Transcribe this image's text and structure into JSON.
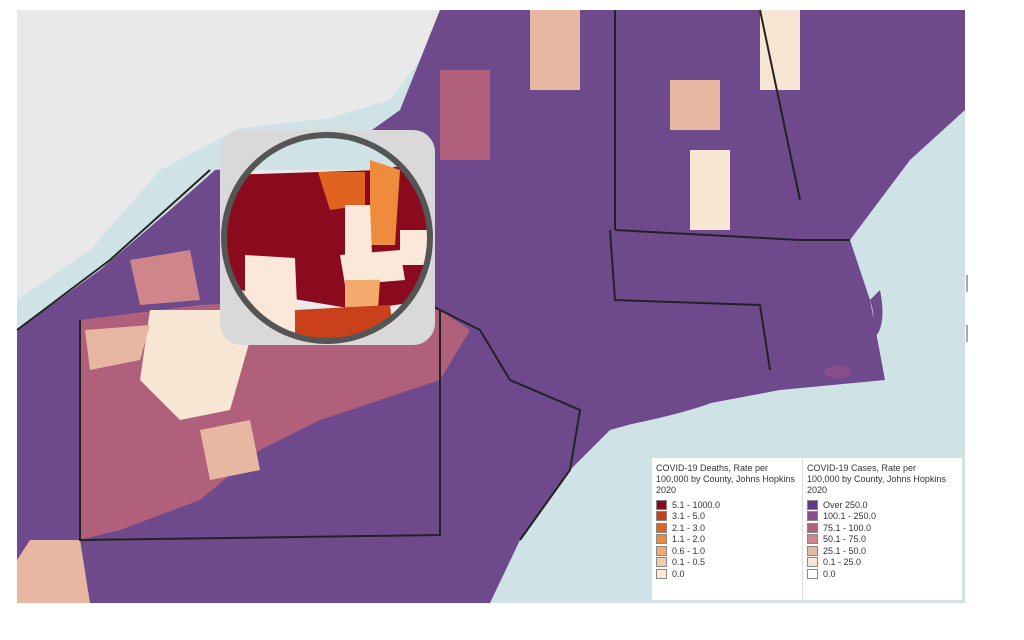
{
  "legend_deaths": {
    "title": "COVID-19 Deaths, Rate per 100,000 by County, Johns Hopkins 2020",
    "items": [
      {
        "label": "5.1 - 1000.0",
        "color": "#8b0a1e"
      },
      {
        "label": "3.1 - 5.0",
        "color": "#c9401b"
      },
      {
        "label": "2.1 - 3.0",
        "color": "#e2621f"
      },
      {
        "label": "1.1 - 2.0",
        "color": "#ef8b3d"
      },
      {
        "label": "0.6 - 1.0",
        "color": "#f4aa6c"
      },
      {
        "label": "0.1 - 0.5",
        "color": "#f8cca2"
      },
      {
        "label": "0.0",
        "color": "#fbe8d8"
      }
    ]
  },
  "legend_cases": {
    "title": "COVID-19 Cases, Rate per 100,000 by County, Johns Hopkins 2020",
    "items": [
      {
        "label": "Over 250.0",
        "color": "#5f3b88"
      },
      {
        "label": "100.1 - 250.0",
        "color": "#8a4d8b"
      },
      {
        "label": "75.1 - 100.0",
        "color": "#b0607b"
      },
      {
        "label": "50.1 - 75.0",
        "color": "#cf868b"
      },
      {
        "label": "25.1 - 50.0",
        "color": "#e7b7a1"
      },
      {
        "label": "0.1 - 25.0",
        "color": "#f6e6d3"
      },
      {
        "label": "0.0",
        "color": "#ffffff"
      }
    ]
  }
}
